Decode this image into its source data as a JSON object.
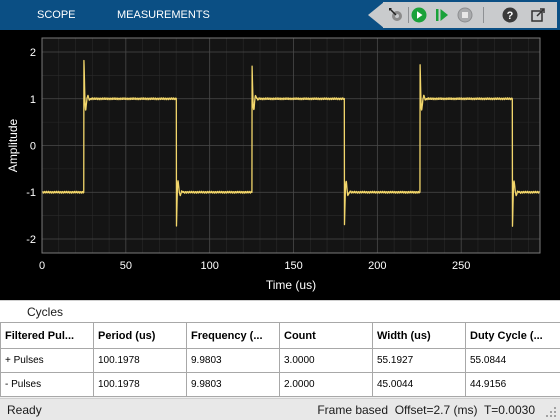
{
  "toolstrip": {
    "tabs": [
      {
        "label": "SCOPE"
      },
      {
        "label": "MEASUREMENTS"
      }
    ],
    "buttons": [
      {
        "icon": "trigger-settings-icon"
      },
      {
        "icon": "run-icon"
      },
      {
        "icon": "step-forward-icon"
      },
      {
        "icon": "stop-icon"
      },
      {
        "icon": "help-icon"
      },
      {
        "icon": "undock-icon"
      }
    ]
  },
  "chart_data": {
    "type": "line",
    "xlabel": "Time (us)",
    "ylabel": "Amplitude",
    "xlim": [
      0,
      297
    ],
    "ylim": [
      -2.3,
      2.3
    ],
    "xticks": [
      0,
      50,
      100,
      150,
      200,
      250
    ],
    "yticks": [
      -2,
      -1,
      0,
      1,
      2
    ],
    "grid": true,
    "background": "#141414",
    "line_color": "#f2d66b",
    "series": [
      {
        "period": 100.2,
        "rise_times": [
          25,
          125.2,
          225.4
        ],
        "fall_times": [
          80.1,
          180.3,
          280.5
        ],
        "high_level": 1.0,
        "low_level": -1.0,
        "overshoot_peak": 1.82,
        "undershoot_peak": -1.82
      }
    ]
  },
  "cycles": {
    "title": "Cycles",
    "columns": [
      "Filtered Pul...",
      "Period (us)",
      "Frequency (...",
      "Count",
      "Width (us)",
      "Duty Cycle (..."
    ],
    "rows": [
      [
        "+ Pulses",
        "100.1978",
        "9.9803",
        "3.0000",
        "55.1927",
        "55.0844"
      ],
      [
        "- Pulses",
        "100.1978",
        "9.9803",
        "2.0000",
        "45.0044",
        "44.9156"
      ]
    ]
  },
  "status": {
    "left": "Ready",
    "right": "Frame based  Offset=2.7 (ms)  T=0.0030"
  }
}
